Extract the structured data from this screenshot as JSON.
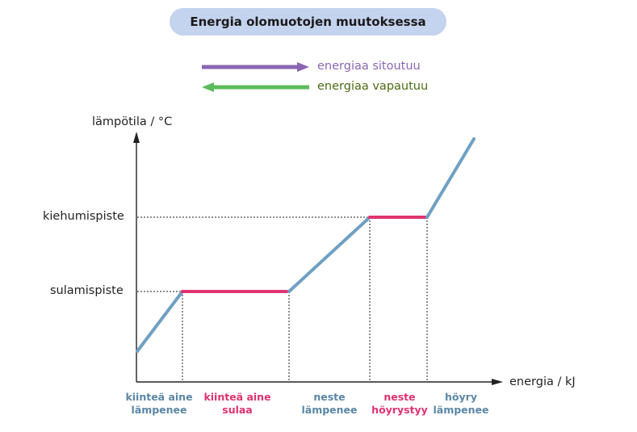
{
  "title": "Energia olomuotojen muutoksessa",
  "legend": {
    "absorb": {
      "label": "energiaa sitoutuu",
      "color": "#8a66b2",
      "text_color": "#8a66b2"
    },
    "release": {
      "label": "energiaa vapautuu",
      "color": "#5cbb5c",
      "text_color": "#4d6a12"
    }
  },
  "axes": {
    "y_label": "lämpötila / °C",
    "x_label": "energia / kJ",
    "y_ticks": {
      "boiling": "kiehumispiste",
      "melting": "sulamispiste"
    }
  },
  "colors": {
    "heating_line": "#6fa0c3",
    "phase_line": "#e0336f",
    "axis": "#222222"
  },
  "phases": [
    {
      "line1": "kiinteä aine",
      "line2": "lämpenee",
      "kind": "heat"
    },
    {
      "line1": "kiinteä aine",
      "line2": "sulaa",
      "kind": "change"
    },
    {
      "line1": "neste",
      "line2": "lämpenee",
      "kind": "heat"
    },
    {
      "line1": "neste",
      "line2": "höyrystyy",
      "kind": "change"
    },
    {
      "line1": "höyry",
      "line2": "lämpenee",
      "kind": "heat"
    }
  ]
}
